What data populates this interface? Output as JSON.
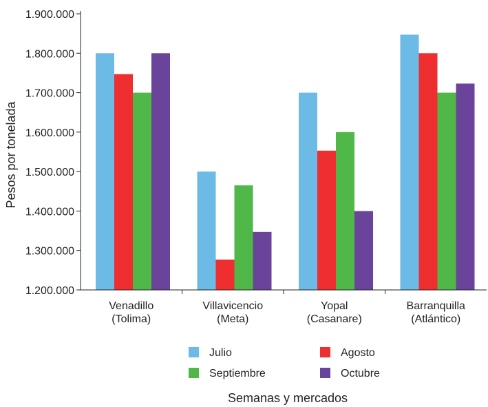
{
  "chart_data": {
    "type": "bar",
    "title": "",
    "xlabel": "Semanas y mercados",
    "ylabel": "Pesos por tonelada",
    "ylim": [
      1200000,
      1900000
    ],
    "yticks": [
      1200000,
      1300000,
      1400000,
      1500000,
      1600000,
      1700000,
      1800000,
      1900000
    ],
    "ytick_labels": [
      "1.200.000",
      "1.300.000",
      "1.400.000",
      "1.500.000",
      "1.600.000",
      "1.700.000",
      "1.800.000",
      "1.900.000"
    ],
    "categories": [
      [
        "Venadillo",
        "(Tolima)"
      ],
      [
        "Villavicencio",
        "(Meta)"
      ],
      [
        "Yopal",
        "(Casanare)"
      ],
      [
        "Barranquilla",
        "(Atlántico)"
      ]
    ],
    "series": [
      {
        "name": "Julio",
        "color": "#6cbbe6",
        "values": [
          1800000,
          1500000,
          1700000,
          1847000
        ]
      },
      {
        "name": "Agosto",
        "color": "#ee2e2f",
        "values": [
          1747000,
          1277000,
          1553000,
          1800000
        ]
      },
      {
        "name": "Septiembre",
        "color": "#4fb848",
        "values": [
          1700000,
          1465000,
          1600000,
          1700000
        ]
      },
      {
        "name": "Octubre",
        "color": "#6a449a",
        "values": [
          1800000,
          1347000,
          1400000,
          1723000
        ]
      }
    ],
    "grid": false,
    "legend_position": "bottom"
  }
}
